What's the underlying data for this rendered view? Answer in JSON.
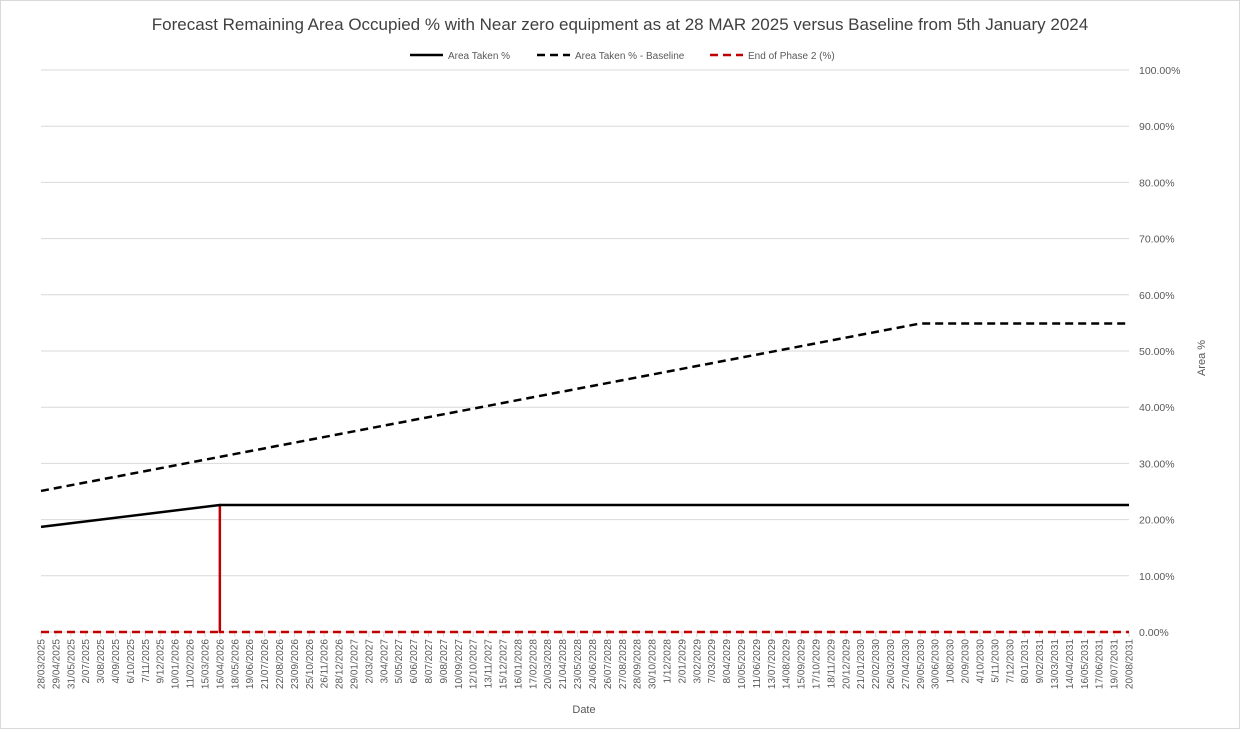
{
  "chart_data": {
    "type": "line",
    "title": "Forecast Remaining Area Occupied % with Near zero equipment as at 28 MAR 2025 versus Baseline from 5th January 2024",
    "xlabel": "Date",
    "ylabel": "Area %",
    "ylim": [
      0,
      100
    ],
    "y_ticks": [
      "0.00%",
      "10.00%",
      "20.00%",
      "30.00%",
      "40.00%",
      "50.00%",
      "60.00%",
      "70.00%",
      "80.00%",
      "90.00%",
      "100.00%"
    ],
    "y_axis_side": "right",
    "grid": true,
    "legend_position": "top",
    "x_ticks": [
      "28/03/2025",
      "29/04/2025",
      "31/05/2025",
      "2/07/2025",
      "3/08/2025",
      "4/09/2025",
      "6/10/2025",
      "7/11/2025",
      "9/12/2025",
      "10/01/2026",
      "11/02/2026",
      "15/03/2026",
      "16/04/2026",
      "18/05/2026",
      "19/06/2026",
      "21/07/2026",
      "22/08/2026",
      "23/09/2026",
      "25/10/2026",
      "26/11/2026",
      "28/12/2026",
      "29/01/2027",
      "2/03/2027",
      "3/04/2027",
      "5/05/2027",
      "6/06/2027",
      "8/07/2027",
      "9/08/2027",
      "10/09/2027",
      "12/10/2027",
      "13/11/2027",
      "15/12/2027",
      "16/01/2028",
      "17/02/2028",
      "20/03/2028",
      "21/04/2028",
      "23/05/2028",
      "24/06/2028",
      "26/07/2028",
      "27/08/2028",
      "28/09/2028",
      "30/10/2028",
      "1/12/2028",
      "2/01/2029",
      "3/02/2029",
      "7/03/2029",
      "8/04/2029",
      "10/05/2029",
      "11/06/2029",
      "13/07/2029",
      "14/08/2029",
      "15/09/2029",
      "17/10/2029",
      "18/11/2029",
      "20/12/2029",
      "21/01/2030",
      "22/02/2030",
      "26/03/2030",
      "27/04/2030",
      "29/05/2030",
      "30/06/2030",
      "1/08/2030",
      "2/09/2030",
      "4/10/2030",
      "5/11/2030",
      "7/12/2030",
      "8/01/2031",
      "9/02/2031",
      "13/03/2031",
      "14/04/2031",
      "16/05/2031",
      "17/06/2031",
      "19/07/2031",
      "20/08/2031"
    ],
    "series": [
      {
        "name": "Area Taken %",
        "color": "#000000",
        "style": "solid",
        "points": [
          {
            "x": "28/03/2025",
            "y": 18.7
          },
          {
            "x": "16/04/2026",
            "y": 22.6
          },
          {
            "x": "20/08/2031",
            "y": 22.6
          }
        ]
      },
      {
        "name": "Area Taken % - Baseline",
        "color": "#000000",
        "style": "dashed",
        "points": [
          {
            "x": "28/03/2025",
            "y": 25.1
          },
          {
            "x": "29/05/2030",
            "y": 54.9
          },
          {
            "x": "20/08/2031",
            "y": 54.9
          }
        ]
      },
      {
        "name": "End of Phase 2 (%)",
        "color": "#c00000",
        "style": "dashed",
        "points": [
          {
            "x": "28/03/2025",
            "y": 0
          },
          {
            "x": "16/04/2026",
            "y": 0
          },
          {
            "x": "16/04/2026",
            "y": 22.6
          },
          {
            "x": "16/04/2026",
            "y": 0
          },
          {
            "x": "20/08/2031",
            "y": 0
          }
        ]
      }
    ]
  }
}
